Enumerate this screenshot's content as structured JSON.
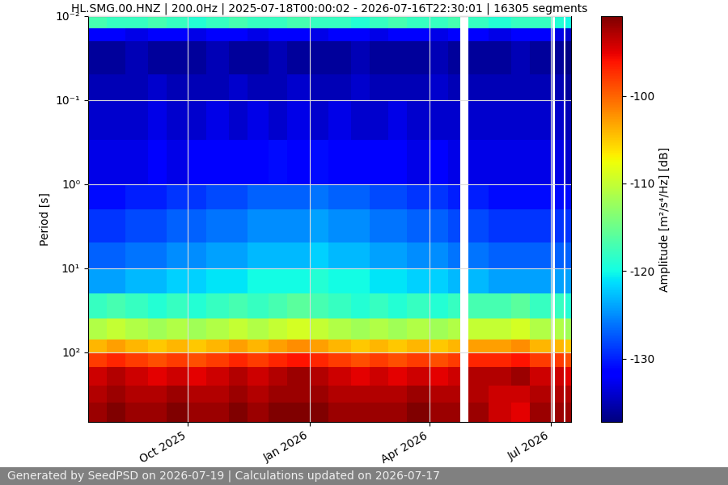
{
  "chart_data": {
    "type": "heatmap",
    "title": "HL.SMG.00.HNZ | 200.0Hz | 2025-07-18T00:00:02 - 2026-07-16T22:30:01 | 16305 segments",
    "ylabel": "Period [s]",
    "footer": "Generated by SeedPSD on 2026-07-19 | Calculations updated on 2026-07-17",
    "color": "jet",
    "log": "y",
    "grid": true,
    "x_edges": [
      "2025-07-18",
      "2025-08-01",
      "2025-08-15",
      "2025-09-01",
      "2025-09-15",
      "2025-10-01",
      "2025-10-15",
      "2025-11-01",
      "2025-11-15",
      "2025-12-01",
      "2025-12-15",
      "2026-01-01",
      "2026-01-15",
      "2026-02-01",
      "2026-02-15",
      "2026-03-01",
      "2026-03-15",
      "2026-04-01",
      "2026-04-15",
      "2026-04-24",
      "2026-04-30",
      "2026-05-15",
      "2026-06-01",
      "2026-06-15",
      "2026-07-02",
      "2026-07-04",
      "2026-07-11",
      "2026-07-12",
      "2026-07-16"
    ],
    "y_edges": [
      0.01,
      0.014,
      0.02,
      0.05,
      0.1,
      0.3,
      1,
      2,
      5,
      10,
      20,
      40,
      70,
      100,
      150,
      250,
      400,
      676
    ],
    "cells": [
      [
        -117,
        -118,
        -118,
        -117,
        -118,
        -119,
        -118,
        -117,
        -118,
        -118,
        -117,
        -118,
        -118,
        -119,
        -118,
        -117,
        -118,
        -118,
        -117,
        null,
        -118,
        -119,
        -118,
        -118,
        null,
        -119,
        null,
        -120
      ],
      [
        -132,
        -132,
        -133,
        -132,
        -132,
        -133,
        -132,
        -132,
        -133,
        -132,
        -132,
        -133,
        -132,
        -132,
        -133,
        -132,
        -132,
        -133,
        -132,
        null,
        -132,
        -133,
        -132,
        -132,
        null,
        -133,
        null,
        -134
      ],
      [
        -136,
        -136,
        -135,
        -136,
        -136,
        -136,
        -135,
        -136,
        -136,
        -135,
        -136,
        -136,
        -136,
        -135,
        -136,
        -136,
        -136,
        -135,
        -136,
        null,
        -136,
        -136,
        -135,
        -136,
        null,
        -136,
        null,
        -137
      ],
      [
        -135,
        -135,
        -135,
        -134,
        -135,
        -135,
        -135,
        -134,
        -135,
        -135,
        -134,
        -135,
        -135,
        -134,
        -135,
        -135,
        -135,
        -134,
        -135,
        null,
        -135,
        -135,
        -135,
        -135,
        null,
        -135,
        null,
        -136
      ],
      [
        -134,
        -134,
        -134,
        -133,
        -134,
        -134,
        -133,
        -134,
        -133,
        -134,
        -133,
        -134,
        -133,
        -134,
        -134,
        -133,
        -134,
        -134,
        -134,
        null,
        -134,
        -134,
        -134,
        -134,
        null,
        -134,
        null,
        -135
      ],
      [
        -133,
        -133,
        -133,
        -132,
        -133,
        -132,
        -132,
        -132,
        -132,
        -131,
        -132,
        -131,
        -132,
        -132,
        -132,
        -132,
        -133,
        -132,
        -133,
        null,
        -133,
        -133,
        -133,
        -133,
        null,
        -133,
        null,
        -134
      ],
      [
        -131,
        -131,
        -130,
        -130,
        -129,
        -129,
        -128,
        -128,
        -127,
        -127,
        -127,
        -126,
        -127,
        -127,
        -128,
        -128,
        -129,
        -129,
        -130,
        null,
        -130,
        -131,
        -131,
        -131,
        null,
        -131,
        null,
        -131
      ],
      [
        -129,
        -129,
        -128,
        -128,
        -127,
        -127,
        -126,
        -126,
        -125,
        -125,
        -125,
        -124,
        -125,
        -125,
        -126,
        -126,
        -127,
        -127,
        -128,
        null,
        -128,
        -129,
        -129,
        -129,
        null,
        -129,
        null,
        -129
      ],
      [
        -127,
        -127,
        -126,
        -126,
        -125,
        -125,
        -124,
        -124,
        -123,
        -123,
        -123,
        -122,
        -123,
        -123,
        -124,
        -124,
        -125,
        -125,
        -126,
        null,
        -126,
        -127,
        -127,
        -127,
        null,
        -127,
        null,
        -127
      ],
      [
        -124,
        -124,
        -123,
        -123,
        -122,
        -122,
        -121,
        -121,
        -120,
        -120,
        -120,
        -119,
        -120,
        -120,
        -121,
        -121,
        -122,
        -122,
        -123,
        null,
        -123,
        -124,
        -124,
        -124,
        null,
        -124,
        null,
        -124
      ],
      [
        -118,
        -117,
        -118,
        -119,
        -118,
        -119,
        -118,
        -117,
        -118,
        -117,
        -116,
        -117,
        -118,
        -119,
        -118,
        -119,
        -118,
        -119,
        -118,
        null,
        -117,
        -117,
        -116,
        -118,
        null,
        -118,
        null,
        -119
      ],
      [
        -111,
        -110,
        -111,
        -112,
        -111,
        -112,
        -111,
        -110,
        -111,
        -110,
        -109,
        -110,
        -111,
        -112,
        -111,
        -112,
        -111,
        -112,
        -111,
        null,
        -110,
        -110,
        -109,
        -111,
        null,
        -111,
        null,
        -112
      ],
      [
        -104,
        -103,
        -104,
        -105,
        -104,
        -105,
        -104,
        -103,
        -104,
        -103,
        -102,
        -103,
        -104,
        -105,
        -104,
        -105,
        -104,
        -105,
        -104,
        null,
        -103,
        -103,
        -102,
        -104,
        null,
        -104,
        null,
        -105
      ],
      [
        -98,
        -97,
        -98,
        -99,
        -98,
        -99,
        -98,
        -97,
        -98,
        -97,
        -96,
        -97,
        -98,
        -99,
        -98,
        -99,
        -98,
        -99,
        -98,
        null,
        -97,
        -97,
        -96,
        -98,
        null,
        -98,
        null,
        -99
      ],
      [
        -94,
        -93,
        -94,
        -95,
        -94,
        -95,
        -94,
        -93,
        -94,
        -93,
        -92,
        -93,
        -94,
        -95,
        -94,
        -95,
        -94,
        -95,
        -94,
        null,
        -93,
        -93,
        -92,
        -94,
        null,
        -94,
        null,
        -95
      ],
      [
        -93,
        -92,
        -93,
        -93,
        -92,
        -93,
        -93,
        -92,
        -93,
        -92,
        -92,
        -92,
        -93,
        -93,
        -93,
        -93,
        -92,
        -93,
        -93,
        null,
        -93,
        -94,
        -94,
        -93,
        null,
        -93,
        null,
        -93
      ],
      [
        -92,
        -91,
        -92,
        -92,
        -91,
        -92,
        -92,
        -91,
        -92,
        -91,
        -91,
        -91,
        -92,
        -92,
        -92,
        -92,
        -91,
        -92,
        -92,
        null,
        -92,
        -94,
        -95,
        -92,
        null,
        -92,
        null,
        -92
      ]
    ],
    "xlim": [
      "2025-07-18",
      "2026-07-16"
    ],
    "xticks": [
      {
        "value": "2025-10-01",
        "label": "Oct 2025"
      },
      {
        "value": "2026-01-01",
        "label": "Jan 2026"
      },
      {
        "value": "2026-04-01",
        "label": "Apr 2026"
      },
      {
        "value": "2026-07-01",
        "label": "Jul 2026"
      }
    ],
    "ylim": [
      676,
      0.01
    ],
    "yticks": [
      {
        "value": 0.01,
        "label": "10⁻²"
      },
      {
        "value": 0.1,
        "label": "10⁻¹"
      },
      {
        "value": 1,
        "label": "10⁰"
      },
      {
        "value": 10,
        "label": "10¹"
      },
      {
        "value": 100,
        "label": "10²"
      }
    ],
    "colorbar": {
      "label": "Amplitude [m²/s⁴/Hz] [dB]",
      "range": [
        -137.2,
        -90.9
      ],
      "ticks": [
        -130,
        -120,
        -110,
        -100
      ]
    }
  }
}
